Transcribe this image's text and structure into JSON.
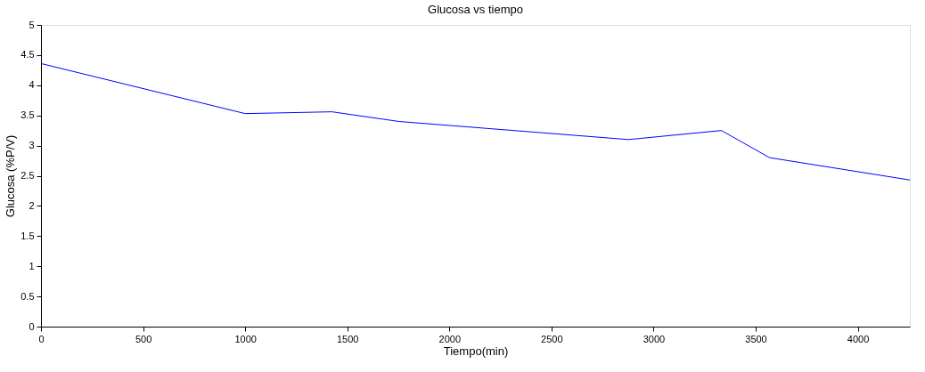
{
  "chart_data": {
    "type": "line",
    "title": "Glucosa vs tiempo",
    "xlabel": "Tiempo(min)",
    "ylabel": "Glucosa (%P/V)",
    "x": [
      0,
      1000,
      1425,
      1752,
      2877,
      3332,
      3568,
      4255
    ],
    "series": [
      {
        "color": "#0000ff",
        "values": [
          4.36,
          3.53,
          3.56,
          3.4,
          3.1,
          3.25,
          2.8,
          2.43
        ]
      }
    ],
    "xlim": [
      0,
      4255
    ],
    "xticks": [
      0,
      500,
      1000,
      1500,
      2000,
      2500,
      3000,
      3500,
      4000
    ],
    "ylim": [
      0,
      5
    ],
    "yticks": [
      0,
      0.5,
      1,
      1.5,
      2,
      2.5,
      3,
      3.5,
      4,
      4.5,
      5
    ],
    "grid": false,
    "legend": false,
    "marker": "none",
    "line_style": "solid"
  }
}
